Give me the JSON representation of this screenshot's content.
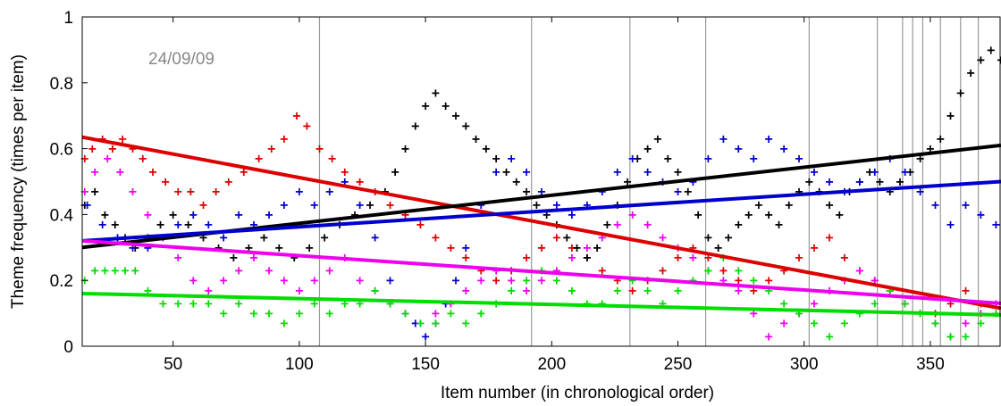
{
  "chart_data": {
    "type": "scatter",
    "title": "",
    "xlabel": "Item number (in chronological order)",
    "ylabel": "Theme frequency (times per item)",
    "xlim": [
      14,
      378
    ],
    "ylim": [
      0,
      1
    ],
    "xticks": [
      50,
      100,
      150,
      200,
      250,
      300,
      350
    ],
    "yticks": [
      0,
      0.2,
      0.4,
      0.6,
      0.8,
      1
    ],
    "xtick_labels": [
      "50",
      "100",
      "150",
      "200",
      "250",
      "300",
      "350"
    ],
    "ytick_labels": [
      "0",
      "0.2",
      "0.4",
      "0.6",
      "0.8",
      "1"
    ],
    "annotation": "24/09/09",
    "vlines": [
      108,
      192,
      231,
      261,
      302,
      329,
      339,
      343,
      347,
      354,
      362,
      369
    ],
    "colors": {
      "red": "#dd0000",
      "black": "#000000",
      "blue": "#0000cc",
      "magenta": "#ee00ee",
      "green": "#00dd00",
      "vline": "#999999"
    },
    "series": [
      {
        "color": "#dd0000",
        "trend": [
          [
            14,
            0.635
          ],
          [
            378,
            0.115
          ]
        ],
        "x": [
          15,
          18,
          22,
          26,
          30,
          34,
          38,
          42,
          47,
          52,
          57,
          62,
          67,
          72,
          78,
          84,
          89,
          94,
          99,
          103,
          108,
          113,
          118,
          124,
          130,
          136,
          142,
          148,
          154,
          160,
          166,
          172,
          178,
          184,
          190,
          196,
          202,
          208,
          214,
          220,
          226,
          232,
          238,
          244,
          250,
          256,
          262,
          268,
          274,
          280,
          286,
          292,
          298,
          304,
          310,
          316,
          322,
          328,
          334,
          340,
          346,
          352,
          358,
          364,
          370,
          376
        ],
        "y": [
          0.57,
          0.6,
          0.63,
          0.6,
          0.63,
          0.6,
          0.57,
          0.53,
          0.5,
          0.47,
          0.47,
          0.43,
          0.47,
          0.5,
          0.53,
          0.57,
          0.6,
          0.63,
          0.7,
          0.67,
          0.6,
          0.57,
          0.53,
          0.5,
          0.47,
          0.43,
          0.4,
          0.37,
          0.33,
          0.3,
          0.27,
          0.23,
          0.2,
          0.23,
          0.27,
          0.3,
          0.33,
          0.3,
          0.27,
          0.23,
          0.2,
          0.17,
          0.2,
          0.23,
          0.27,
          0.3,
          0.27,
          0.23,
          0.2,
          0.17,
          0.2,
          0.23,
          0.27,
          0.3,
          0.33,
          0.27,
          0.23,
          0.2,
          0.17,
          0.13,
          0.1,
          0.1,
          0.13,
          0.17,
          0.13,
          0.1
        ]
      },
      {
        "color": "#000000",
        "trend": [
          [
            14,
            0.3
          ],
          [
            378,
            0.61
          ]
        ],
        "x": [
          15,
          19,
          23,
          27,
          31,
          35,
          40,
          45,
          50,
          56,
          62,
          68,
          74,
          80,
          86,
          92,
          98,
          104,
          110,
          116,
          122,
          128,
          134,
          138,
          142,
          146,
          150,
          154,
          158,
          162,
          166,
          170,
          174,
          178,
          182,
          186,
          190,
          194,
          198,
          202,
          206,
          210,
          214,
          218,
          222,
          226,
          230,
          234,
          238,
          242,
          246,
          250,
          254,
          258,
          262,
          266,
          270,
          274,
          278,
          282,
          286,
          290,
          294,
          298,
          302,
          306,
          310,
          314,
          318,
          322,
          326,
          330,
          334,
          338,
          342,
          346,
          350,
          354,
          358,
          362,
          366,
          370,
          374,
          378
        ],
        "y": [
          0.43,
          0.47,
          0.4,
          0.37,
          0.33,
          0.3,
          0.33,
          0.37,
          0.4,
          0.37,
          0.33,
          0.3,
          0.27,
          0.3,
          0.33,
          0.3,
          0.27,
          0.3,
          0.33,
          0.37,
          0.4,
          0.43,
          0.47,
          0.53,
          0.6,
          0.67,
          0.73,
          0.77,
          0.73,
          0.7,
          0.67,
          0.63,
          0.6,
          0.57,
          0.53,
          0.5,
          0.47,
          0.43,
          0.4,
          0.37,
          0.33,
          0.3,
          0.27,
          0.3,
          0.37,
          0.43,
          0.5,
          0.57,
          0.6,
          0.63,
          0.57,
          0.53,
          0.47,
          0.4,
          0.33,
          0.3,
          0.33,
          0.37,
          0.4,
          0.43,
          0.4,
          0.37,
          0.43,
          0.47,
          0.5,
          0.47,
          0.43,
          0.4,
          0.47,
          0.5,
          0.53,
          0.5,
          0.47,
          0.5,
          0.53,
          0.57,
          0.6,
          0.63,
          0.7,
          0.77,
          0.83,
          0.87,
          0.9,
          0.87
        ]
      },
      {
        "color": "#0000cc",
        "trend": [
          [
            14,
            0.32
          ],
          [
            378,
            0.5
          ]
        ],
        "x": [
          16,
          22,
          28,
          34,
          40,
          46,
          52,
          58,
          64,
          70,
          76,
          82,
          88,
          94,
          100,
          106,
          112,
          118,
          124,
          130,
          136,
          142,
          146,
          150,
          154,
          158,
          162,
          166,
          172,
          178,
          184,
          190,
          196,
          202,
          208,
          214,
          220,
          226,
          232,
          238,
          244,
          250,
          256,
          262,
          268,
          274,
          280,
          286,
          292,
          298,
          304,
          310,
          316,
          322,
          328,
          334,
          340,
          346,
          352,
          358,
          364,
          370,
          376
        ],
        "y": [
          0.43,
          0.37,
          0.33,
          0.3,
          0.3,
          0.33,
          0.37,
          0.4,
          0.37,
          0.33,
          0.4,
          0.37,
          0.4,
          0.43,
          0.47,
          0.43,
          0.47,
          0.5,
          0.43,
          0.33,
          0.2,
          0.1,
          0.07,
          0.03,
          0.07,
          0.13,
          0.2,
          0.3,
          0.43,
          0.53,
          0.57,
          0.53,
          0.47,
          0.43,
          0.4,
          0.43,
          0.47,
          0.53,
          0.57,
          0.53,
          0.5,
          0.47,
          0.5,
          0.57,
          0.63,
          0.6,
          0.57,
          0.63,
          0.6,
          0.57,
          0.53,
          0.5,
          0.47,
          0.5,
          0.53,
          0.57,
          0.53,
          0.47,
          0.43,
          0.37,
          0.43,
          0.4,
          0.37
        ]
      },
      {
        "color": "#ee00ee",
        "trend": [
          [
            14,
            0.32
          ],
          [
            378,
            0.13
          ]
        ],
        "x": [
          15,
          19,
          24,
          29,
          34,
          40,
          46,
          52,
          58,
          64,
          70,
          76,
          82,
          88,
          94,
          100,
          106,
          112,
          118,
          124,
          130,
          136,
          142,
          148,
          154,
          160,
          166,
          172,
          178,
          184,
          190,
          196,
          202,
          208,
          214,
          220,
          226,
          232,
          238,
          244,
          250,
          256,
          262,
          268,
          274,
          280,
          286,
          292,
          298,
          304,
          310,
          316,
          322,
          328,
          334,
          340,
          346,
          352,
          358,
          364,
          370,
          376
        ],
        "y": [
          0.47,
          0.53,
          0.57,
          0.53,
          0.47,
          0.4,
          0.33,
          0.27,
          0.2,
          0.17,
          0.2,
          0.23,
          0.27,
          0.23,
          0.2,
          0.17,
          0.2,
          0.23,
          0.27,
          0.2,
          0.17,
          0.13,
          0.1,
          0.07,
          0.1,
          0.13,
          0.17,
          0.2,
          0.23,
          0.2,
          0.17,
          0.2,
          0.23,
          0.27,
          0.3,
          0.33,
          0.37,
          0.4,
          0.37,
          0.33,
          0.3,
          0.27,
          0.23,
          0.2,
          0.17,
          0.1,
          0.03,
          0.07,
          0.1,
          0.13,
          0.17,
          0.2,
          0.23,
          0.2,
          0.17,
          0.13,
          0.1,
          0.07,
          0.03,
          0.07,
          0.1,
          0.13
        ]
      },
      {
        "color": "#00dd00",
        "trend": [
          [
            14,
            0.16
          ],
          [
            378,
            0.095
          ]
        ],
        "x": [
          15,
          19,
          23,
          27,
          31,
          35,
          40,
          46,
          52,
          58,
          64,
          70,
          76,
          82,
          88,
          94,
          100,
          106,
          112,
          118,
          124,
          130,
          136,
          142,
          148,
          154,
          160,
          166,
          172,
          178,
          184,
          190,
          196,
          202,
          208,
          214,
          220,
          226,
          232,
          238,
          244,
          250,
          256,
          262,
          268,
          274,
          280,
          286,
          292,
          298,
          304,
          310,
          316,
          322,
          328,
          334,
          340,
          346,
          352,
          358,
          364,
          370,
          376
        ],
        "y": [
          0.2,
          0.23,
          0.23,
          0.23,
          0.23,
          0.23,
          0.17,
          0.13,
          0.13,
          0.13,
          0.13,
          0.1,
          0.13,
          0.1,
          0.1,
          0.07,
          0.1,
          0.13,
          0.1,
          0.13,
          0.13,
          0.17,
          0.13,
          0.1,
          0.07,
          0.07,
          0.1,
          0.07,
          0.1,
          0.13,
          0.17,
          0.2,
          0.23,
          0.2,
          0.17,
          0.13,
          0.13,
          0.17,
          0.2,
          0.17,
          0.13,
          0.17,
          0.2,
          0.23,
          0.27,
          0.23,
          0.2,
          0.17,
          0.13,
          0.1,
          0.07,
          0.03,
          0.07,
          0.1,
          0.13,
          0.17,
          0.13,
          0.1,
          0.07,
          0.03,
          0.03,
          0.07,
          0.1
        ]
      }
    ]
  }
}
